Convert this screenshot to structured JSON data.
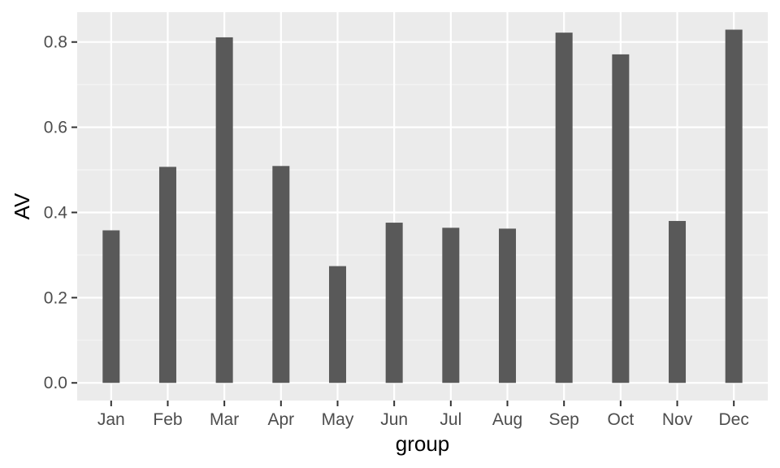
{
  "chart_data": {
    "type": "bar",
    "title": "",
    "xlabel": "group",
    "ylabel": "AV",
    "categories": [
      "Jan",
      "Feb",
      "Mar",
      "Apr",
      "May",
      "Jun",
      "Jul",
      "Aug",
      "Sep",
      "Oct",
      "Nov",
      "Dec"
    ],
    "values": [
      0.358,
      0.507,
      0.811,
      0.509,
      0.274,
      0.376,
      0.364,
      0.362,
      0.822,
      0.771,
      0.38,
      0.829
    ],
    "ylim": [
      -0.0415,
      0.87
    ],
    "yticks": [
      0.0,
      0.2,
      0.4,
      0.6,
      0.8
    ],
    "ytick_labels": [
      "0.0",
      "0.2",
      "0.4",
      "0.6",
      "0.8"
    ],
    "grid": true,
    "legend": "none",
    "colors": {
      "bar": "#595959",
      "panel": "#ebebeb",
      "grid_major": "#ffffff",
      "grid_minor": "#f5f5f5",
      "tick_text": "#4d4d4d",
      "tick_mark": "#333333"
    }
  }
}
